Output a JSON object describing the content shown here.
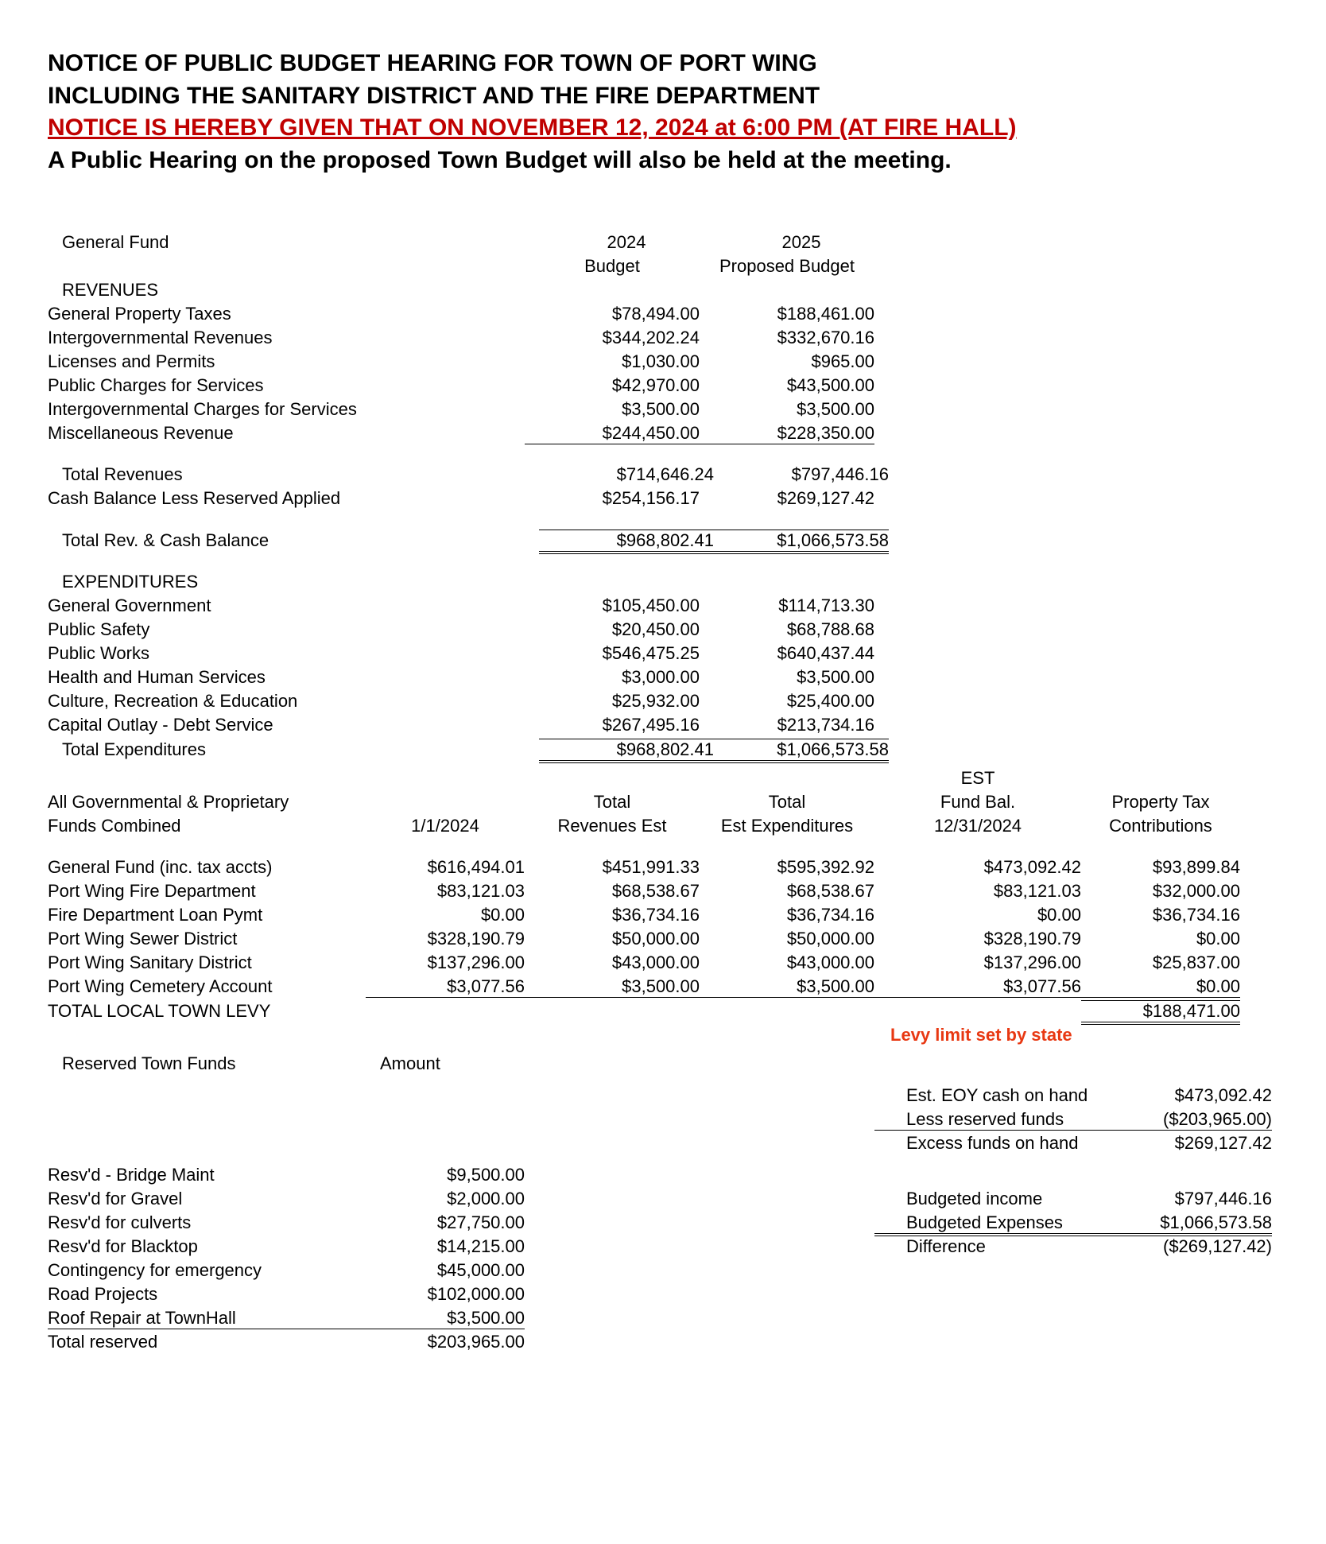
{
  "header": {
    "line1": "NOTICE OF PUBLIC BUDGET HEARING FOR TOWN OF PORT WING",
    "line2": "INCLUDING THE SANITARY DISTRICT AND THE FIRE DEPARTMENT",
    "line3": "NOTICE IS HEREBY GIVEN THAT ON  NOVEMBER 12, 2024 at 6:00 PM (AT FIRE HALL)",
    "line4": "A Public Hearing on the proposed Town Budget will also be held at the meeting."
  },
  "generalFund": {
    "title": "General Fund",
    "cols": {
      "a_line1": "2024",
      "a_line2": "Budget",
      "b_line1": "2025",
      "b_line2": "Proposed Budget"
    },
    "revenuesTitle": "REVENUES",
    "revenueRows": [
      {
        "label": "General Property Taxes",
        "a": "$78,494.00",
        "b": "$188,461.00"
      },
      {
        "label": "Intergovernmental Revenues",
        "a": "$344,202.24",
        "b": "$332,670.16"
      },
      {
        "label": "Licenses and Permits",
        "a": "$1,030.00",
        "b": "$965.00"
      },
      {
        "label": "Public Charges for Services",
        "a": "$42,970.00",
        "b": "$43,500.00"
      },
      {
        "label": "Intergovernmental Charges for Services",
        "a": "$3,500.00",
        "b": "$3,500.00"
      },
      {
        "label": "Miscellaneous Revenue",
        "a": "$244,450.00",
        "b": "$228,350.00"
      }
    ],
    "totalRevenues": {
      "label": "Total Revenues",
      "a": "$714,646.24",
      "b": "$797,446.16"
    },
    "cashBalance": {
      "label": "Cash Balance Less Reserved Applied",
      "a": "$254,156.17",
      "b": "$269,127.42"
    },
    "totalRevCash": {
      "label": "Total Rev. & Cash Balance",
      "a": "$968,802.41",
      "b": "$1,066,573.58"
    },
    "expendituresTitle": "EXPENDITURES",
    "expenditureRows": [
      {
        "label": "General Government",
        "a": "$105,450.00",
        "b": "$114,713.30"
      },
      {
        "label": "Public Safety",
        "a": "$20,450.00",
        "b": "$68,788.68"
      },
      {
        "label": "Public Works",
        "a": "$546,475.25",
        "b": "$640,437.44"
      },
      {
        "label": "Health and Human Services",
        "a": "$3,000.00",
        "b": "$3,500.00"
      },
      {
        "label": "Culture, Recreation & Education",
        "a": "$25,932.00",
        "b": "$25,400.00"
      },
      {
        "label": "Capital Outlay - Debt Service",
        "a": "$267,495.16",
        "b": "$213,734.16"
      }
    ],
    "totalExpenditures": {
      "label": "Total Expenditures",
      "a": "$968,802.41",
      "b": "$1,066,573.58"
    }
  },
  "combinedFunds": {
    "title1": "All Governmental & Proprietary",
    "title2": "Funds Combined",
    "dateCol": "1/1/2024",
    "colA_l1": "Total",
    "colA_l2": "Revenues Est",
    "colB_l1": "Total",
    "colB_l2": "Est Expenditures",
    "colC_l0": "EST",
    "colC_l1": "Fund Bal.",
    "colC_l2": "12/31/2024",
    "colD_l1": "Property Tax",
    "colD_l2": "Contributions",
    "rows": [
      {
        "label": "General Fund (inc. tax accts)",
        "date": "$616,494.01",
        "a": "$451,991.33",
        "b": "$595,392.92",
        "c": "$473,092.42",
        "d": "$93,899.84"
      },
      {
        "label": "Port Wing Fire Department",
        "date": "$83,121.03",
        "a": "$68,538.67",
        "b": "$68,538.67",
        "c": "$83,121.03",
        "d": "$32,000.00"
      },
      {
        "label": "Fire Department Loan Pymt",
        "date": "$0.00",
        "a": "$36,734.16",
        "b": "$36,734.16",
        "c": "$0.00",
        "d": "$36,734.16"
      },
      {
        "label": "Port Wing Sewer District",
        "date": "$328,190.79",
        "a": "$50,000.00",
        "b": "$50,000.00",
        "c": "$328,190.79",
        "d": "$0.00"
      },
      {
        "label": "Port Wing Sanitary District",
        "date": "$137,296.00",
        "a": "$43,000.00",
        "b": "$43,000.00",
        "c": "$137,296.00",
        "d": "$25,837.00"
      },
      {
        "label": "Port Wing Cemetery Account",
        "date": "$3,077.56",
        "a": "$3,500.00",
        "b": "$3,500.00",
        "c": "$3,077.56",
        "d": "$0.00"
      }
    ],
    "totalLevy": {
      "label": "TOTAL LOCAL TOWN LEVY",
      "d": "$188,471.00"
    },
    "levyNote": "Levy limit set by state"
  },
  "reserved": {
    "title": "Reserved Town Funds",
    "amountHdr": "Amount",
    "rows": [
      {
        "label": "Resv'd - Bridge Maint",
        "amt": "$9,500.00"
      },
      {
        "label": "Resv'd for Gravel",
        "amt": "$2,000.00"
      },
      {
        "label": "Resv'd for culverts",
        "amt": "$27,750.00"
      },
      {
        "label": "Resv'd for Blacktop",
        "amt": "$14,215.00"
      },
      {
        "label": "Contingency for emergency",
        "amt": "$45,000.00"
      },
      {
        "label": "Road Projects",
        "amt": "$102,000.00"
      },
      {
        "label": "Roof Repair at TownHall",
        "amt": "$3,500.00"
      }
    ],
    "total": {
      "label": "Total reserved",
      "amt": "$203,965.00"
    }
  },
  "rightSummary": {
    "block1": [
      {
        "label": "Est. EOY cash on hand",
        "val": "$473,092.42"
      },
      {
        "label": "Less reserved funds",
        "val": "($203,965.00)"
      }
    ],
    "excess": {
      "label": "Excess funds on hand",
      "val": "$269,127.42"
    },
    "block2": [
      {
        "label": "Budgeted income",
        "val": "$797,446.16"
      },
      {
        "label": "Budgeted Expenses",
        "val": "$1,066,573.58"
      }
    ],
    "diff": {
      "label": "Difference",
      "val": "($269,127.42)"
    }
  }
}
